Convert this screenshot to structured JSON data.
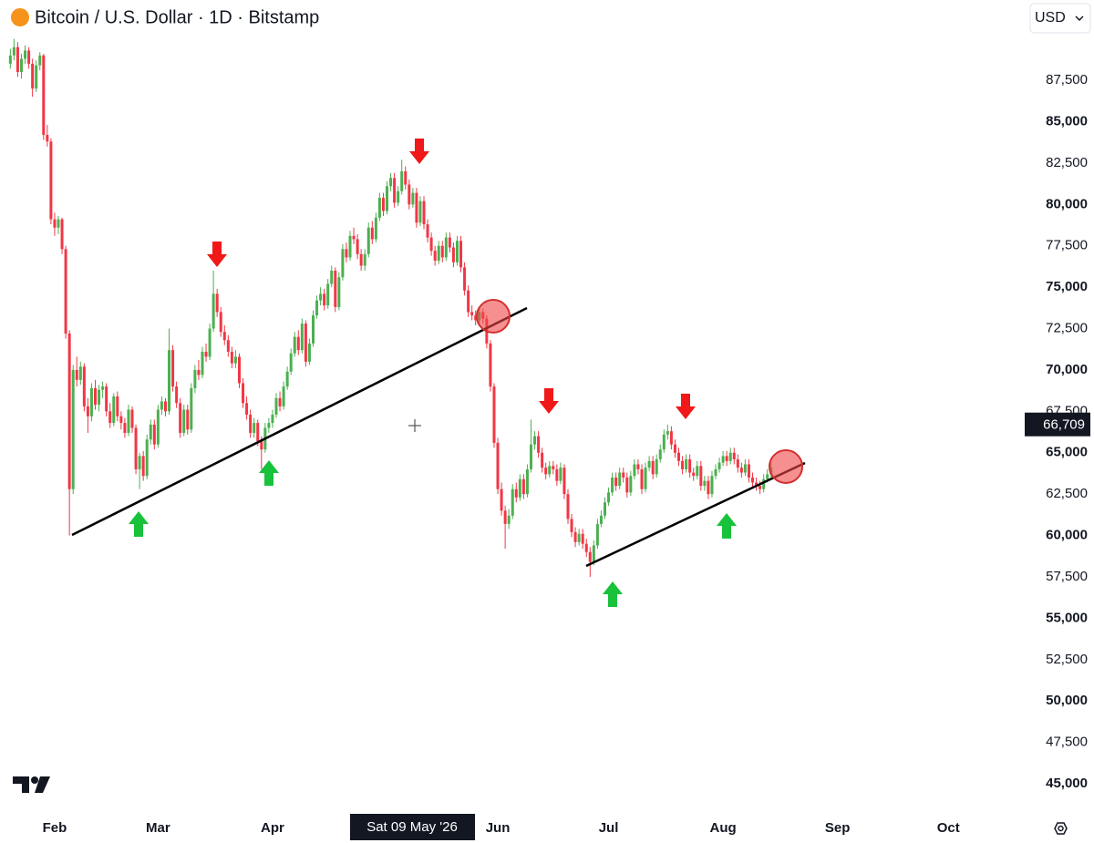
{
  "chart_data": {
    "type": "candlestick",
    "title": "Bitcoin / U.S. Dollar · 1D · Bitstamp",
    "currency": "USD",
    "crosshair_label": "Sat 09 May '26",
    "last_price": {
      "value": 66709,
      "label": "66,709"
    },
    "up_color": "#4caf50",
    "down_color": "#f23645",
    "ylim": [
      43900,
      92350
    ],
    "yticks": [
      {
        "value": 45000,
        "label": "45,000"
      },
      {
        "value": 47500,
        "label": "47,500"
      },
      {
        "value": 50000,
        "label": "50,000"
      },
      {
        "value": 52500,
        "label": "52,500"
      },
      {
        "value": 55000,
        "label": "55,000"
      },
      {
        "value": 57500,
        "label": "57,500"
      },
      {
        "value": 60000,
        "label": "60,000"
      },
      {
        "value": 62500,
        "label": "62,500"
      },
      {
        "value": 65000,
        "label": "65,000"
      },
      {
        "value": 67500,
        "label": "67,500"
      },
      {
        "value": 70000,
        "label": "70,000"
      },
      {
        "value": 72500,
        "label": "72,500"
      },
      {
        "value": 75000,
        "label": "75,000"
      },
      {
        "value": 77500,
        "label": "77,500"
      },
      {
        "value": 80000,
        "label": "80,000"
      },
      {
        "value": 82500,
        "label": "82,500"
      },
      {
        "value": 85000,
        "label": "85,000"
      },
      {
        "value": 87500,
        "label": "87,500"
      }
    ],
    "xlim": [
      -2.8,
      273.7
    ],
    "xticks": [
      {
        "value": 12,
        "label": "Feb"
      },
      {
        "value": 40,
        "label": "Mar"
      },
      {
        "value": 71,
        "label": "Apr"
      },
      {
        "value": 132,
        "label": "Jun"
      },
      {
        "value": 162,
        "label": "Jul"
      },
      {
        "value": 193,
        "label": "Aug"
      },
      {
        "value": 224,
        "label": "Sep"
      },
      {
        "value": 254,
        "label": "Oct"
      }
    ],
    "ohlc": [
      [
        88500,
        89400,
        88200,
        89000
      ],
      [
        89000,
        90000,
        88700,
        89500
      ],
      [
        89500,
        89800,
        87700,
        88000
      ],
      [
        88000,
        89100,
        87600,
        88800
      ],
      [
        88800,
        89600,
        88500,
        89300
      ],
      [
        89300,
        89500,
        88200,
        88500
      ],
      [
        88500,
        88800,
        86500,
        87000
      ],
      [
        87000,
        88700,
        86800,
        88400
      ],
      [
        88400,
        89200,
        88100,
        89000
      ],
      [
        89000,
        89100,
        83900,
        84200
      ],
      [
        84200,
        84800,
        83500,
        83800
      ],
      [
        83800,
        84000,
        78800,
        79100
      ],
      [
        79100,
        79500,
        78100,
        78600
      ],
      [
        78600,
        79300,
        78200,
        79100
      ],
      [
        79100,
        79200,
        77000,
        77300
      ],
      [
        77300,
        77500,
        71900,
        72200
      ],
      [
        72200,
        72400,
        60000,
        62800
      ],
      [
        62800,
        70300,
        62500,
        70000
      ],
      [
        70000,
        70800,
        69000,
        69400
      ],
      [
        69400,
        70500,
        69100,
        70200
      ],
      [
        70200,
        70400,
        67500,
        67800
      ],
      [
        67800,
        68300,
        66200,
        67200
      ],
      [
        67200,
        69200,
        66900,
        68900
      ],
      [
        68900,
        69400,
        67600,
        67900
      ],
      [
        67900,
        69100,
        67500,
        68800
      ],
      [
        68800,
        69300,
        68300,
        69000
      ],
      [
        69000,
        69200,
        67200,
        67500
      ],
      [
        67500,
        68000,
        66500,
        66800
      ],
      [
        66800,
        68600,
        66600,
        68400
      ],
      [
        68400,
        68700,
        66900,
        67200
      ],
      [
        67200,
        67500,
        66400,
        66800
      ],
      [
        66800,
        67100,
        65900,
        66200
      ],
      [
        66200,
        67900,
        66000,
        67600
      ],
      [
        67600,
        67800,
        66200,
        66500
      ],
      [
        66500,
        66700,
        63700,
        64000
      ],
      [
        64000,
        65000,
        62800,
        64800
      ],
      [
        64800,
        65100,
        63300,
        63600
      ],
      [
        63600,
        66100,
        63400,
        65800
      ],
      [
        65800,
        67000,
        65500,
        66700
      ],
      [
        66700,
        67000,
        65200,
        65500
      ],
      [
        65500,
        67900,
        65300,
        67600
      ],
      [
        67600,
        68400,
        67300,
        68100
      ],
      [
        68100,
        68300,
        67200,
        67500
      ],
      [
        67500,
        72500,
        67300,
        71200
      ],
      [
        71200,
        71500,
        68700,
        69000
      ],
      [
        69000,
        69300,
        67700,
        68000
      ],
      [
        68000,
        68300,
        65900,
        66200
      ],
      [
        66200,
        67900,
        66000,
        67600
      ],
      [
        67600,
        67900,
        66100,
        66400
      ],
      [
        66400,
        69200,
        66200,
        68900
      ],
      [
        68900,
        70300,
        68600,
        70000
      ],
      [
        70000,
        70600,
        69400,
        69700
      ],
      [
        69700,
        71400,
        69500,
        71100
      ],
      [
        71100,
        71600,
        70500,
        70800
      ],
      [
        70800,
        72800,
        70600,
        72500
      ],
      [
        72500,
        76000,
        72300,
        74600
      ],
      [
        74600,
        74900,
        73200,
        73500
      ],
      [
        73500,
        73800,
        72000,
        72300
      ],
      [
        72300,
        72700,
        71500,
        71800
      ],
      [
        71800,
        72100,
        70800,
        71100
      ],
      [
        71100,
        71400,
        70100,
        70400
      ],
      [
        70400,
        71200,
        70100,
        70800
      ],
      [
        70800,
        71000,
        68900,
        69200
      ],
      [
        69200,
        69500,
        67700,
        68000
      ],
      [
        68000,
        68400,
        67000,
        67300
      ],
      [
        67300,
        67600,
        65900,
        66200
      ],
      [
        66200,
        67100,
        65900,
        66800
      ],
      [
        66800,
        67000,
        65400,
        65700
      ],
      [
        65700,
        66000,
        64000,
        65200
      ],
      [
        65200,
        66800,
        65000,
        66500
      ],
      [
        66500,
        67100,
        66200,
        66800
      ],
      [
        66800,
        67600,
        66500,
        67300
      ],
      [
        67300,
        68600,
        67100,
        68300
      ],
      [
        68300,
        68700,
        67500,
        67800
      ],
      [
        67800,
        69300,
        67600,
        69000
      ],
      [
        69000,
        70200,
        68800,
        69900
      ],
      [
        69900,
        71300,
        69700,
        71000
      ],
      [
        71000,
        72300,
        70800,
        72000
      ],
      [
        72000,
        72400,
        70900,
        71200
      ],
      [
        71200,
        73100,
        71000,
        72800
      ],
      [
        72800,
        73000,
        70200,
        70500
      ],
      [
        70500,
        71900,
        70300,
        71600
      ],
      [
        71600,
        73600,
        71400,
        73300
      ],
      [
        73300,
        74500,
        73100,
        74200
      ],
      [
        74200,
        75000,
        73900,
        74600
      ],
      [
        74600,
        74900,
        73600,
        73900
      ],
      [
        73900,
        75500,
        73700,
        75200
      ],
      [
        75200,
        76300,
        75000,
        76000
      ],
      [
        76000,
        76200,
        73500,
        73800
      ],
      [
        73800,
        75900,
        73600,
        75600
      ],
      [
        75600,
        77600,
        75400,
        77300
      ],
      [
        77300,
        77700,
        76500,
        76800
      ],
      [
        76800,
        78400,
        76600,
        78100
      ],
      [
        78100,
        78600,
        77600,
        77900
      ],
      [
        77900,
        78200,
        76700,
        77000
      ],
      [
        77000,
        77300,
        76000,
        76300
      ],
      [
        76300,
        77300,
        76000,
        77000
      ],
      [
        77000,
        78900,
        76800,
        78600
      ],
      [
        78600,
        79000,
        77600,
        77900
      ],
      [
        77900,
        79500,
        77700,
        79200
      ],
      [
        79200,
        80700,
        79000,
        80400
      ],
      [
        80400,
        80700,
        79300,
        79600
      ],
      [
        79600,
        81400,
        79400,
        81100
      ],
      [
        81100,
        81900,
        80800,
        81600
      ],
      [
        81600,
        81900,
        79800,
        80100
      ],
      [
        80100,
        81100,
        79900,
        80800
      ],
      [
        80800,
        82700,
        80600,
        82000
      ],
      [
        82000,
        82300,
        80900,
        81200
      ],
      [
        81200,
        81500,
        79700,
        80000
      ],
      [
        80000,
        81000,
        79800,
        80700
      ],
      [
        80700,
        81000,
        78600,
        78900
      ],
      [
        78900,
        80500,
        78700,
        80200
      ],
      [
        80200,
        80500,
        78500,
        78800
      ],
      [
        78800,
        79100,
        77700,
        78000
      ],
      [
        78000,
        78300,
        76900,
        77200
      ],
      [
        77200,
        77500,
        76300,
        76600
      ],
      [
        76600,
        77800,
        76400,
        77500
      ],
      [
        77500,
        77800,
        76500,
        76800
      ],
      [
        76800,
        78300,
        76600,
        78000
      ],
      [
        78000,
        78300,
        77100,
        77400
      ],
      [
        77400,
        77700,
        76200,
        76500
      ],
      [
        76500,
        78100,
        76300,
        77800
      ],
      [
        77800,
        78100,
        75900,
        76200
      ],
      [
        76200,
        76500,
        74500,
        74800
      ],
      [
        74800,
        75100,
        73200,
        73500
      ],
      [
        73500,
        73900,
        73000,
        73300
      ],
      [
        73300,
        73600,
        72700,
        73000
      ],
      [
        73000,
        73800,
        72800,
        73500
      ],
      [
        73500,
        73700,
        72800,
        73100
      ],
      [
        73100,
        73300,
        71300,
        71600
      ],
      [
        71600,
        71800,
        68700,
        69000
      ],
      [
        69000,
        69200,
        65300,
        65600
      ],
      [
        65600,
        65900,
        62500,
        62800
      ],
      [
        62800,
        63200,
        61200,
        61500
      ],
      [
        61500,
        61800,
        59200,
        60700
      ],
      [
        60700,
        61600,
        60400,
        61200
      ],
      [
        61200,
        63100,
        61000,
        62800
      ],
      [
        62800,
        63200,
        62000,
        62300
      ],
      [
        62300,
        63700,
        62100,
        63400
      ],
      [
        63400,
        63700,
        62200,
        62500
      ],
      [
        62500,
        64300,
        62300,
        64000
      ],
      [
        64000,
        67000,
        63800,
        65500
      ],
      [
        65500,
        66300,
        65200,
        66000
      ],
      [
        66000,
        66300,
        64700,
        65000
      ],
      [
        65000,
        65300,
        63800,
        64100
      ],
      [
        64100,
        64400,
        63400,
        63700
      ],
      [
        63700,
        64500,
        63500,
        64200
      ],
      [
        64200,
        64500,
        63700,
        64000
      ],
      [
        64000,
        64300,
        63000,
        63300
      ],
      [
        63300,
        64400,
        63100,
        64100
      ],
      [
        64100,
        64300,
        62200,
        62500
      ],
      [
        62500,
        62800,
        60700,
        61000
      ],
      [
        61000,
        61300,
        59900,
        60200
      ],
      [
        60200,
        60500,
        59300,
        59600
      ],
      [
        59600,
        60400,
        59400,
        60100
      ],
      [
        60100,
        60400,
        59200,
        59500
      ],
      [
        59500,
        59800,
        58700,
        59000
      ],
      [
        59000,
        59300,
        57500,
        58400
      ],
      [
        58400,
        59700,
        58200,
        59400
      ],
      [
        59400,
        61000,
        59200,
        60700
      ],
      [
        60700,
        61500,
        60500,
        61200
      ],
      [
        61200,
        62300,
        61000,
        62000
      ],
      [
        62000,
        62900,
        61800,
        62600
      ],
      [
        62600,
        63800,
        62400,
        63500
      ],
      [
        63500,
        63800,
        62700,
        63000
      ],
      [
        63000,
        64100,
        62800,
        63800
      ],
      [
        63800,
        64100,
        63200,
        63500
      ],
      [
        63500,
        63800,
        62300,
        62600
      ],
      [
        62600,
        63900,
        62400,
        63600
      ],
      [
        63600,
        64600,
        63400,
        64300
      ],
      [
        64300,
        64600,
        63700,
        64000
      ],
      [
        64000,
        64300,
        62500,
        62800
      ],
      [
        62800,
        64400,
        62600,
        64100
      ],
      [
        64100,
        64800,
        63900,
        64500
      ],
      [
        64500,
        64800,
        63400,
        63700
      ],
      [
        63700,
        64900,
        63500,
        64600
      ],
      [
        64600,
        65500,
        64400,
        65200
      ],
      [
        65200,
        66400,
        65000,
        66100
      ],
      [
        66100,
        66700,
        65800,
        66300
      ],
      [
        66300,
        66600,
        65200,
        65500
      ],
      [
        65500,
        65800,
        64700,
        65000
      ],
      [
        65000,
        65300,
        64200,
        64500
      ],
      [
        64500,
        64800,
        63700,
        64000
      ],
      [
        64000,
        64900,
        63800,
        64600
      ],
      [
        64600,
        64900,
        63500,
        63800
      ],
      [
        63800,
        64100,
        63300,
        63600
      ],
      [
        63600,
        64500,
        63400,
        64200
      ],
      [
        64200,
        64500,
        62700,
        63000
      ],
      [
        63000,
        63600,
        62700,
        63300
      ],
      [
        63300,
        63600,
        62200,
        62500
      ],
      [
        62500,
        63900,
        62300,
        63600
      ],
      [
        63600,
        64300,
        63400,
        64000
      ],
      [
        64000,
        64700,
        63800,
        64400
      ],
      [
        64400,
        65100,
        64200,
        64800
      ],
      [
        64800,
        65100,
        64200,
        64500
      ],
      [
        64500,
        65300,
        64300,
        65000
      ],
      [
        65000,
        65300,
        64300,
        64600
      ],
      [
        64600,
        64900,
        63800,
        64100
      ],
      [
        64100,
        64400,
        63500,
        63800
      ],
      [
        63800,
        64600,
        63600,
        64300
      ],
      [
        64300,
        64600,
        63200,
        63500
      ],
      [
        63500,
        63800,
        62900,
        63200
      ],
      [
        63200,
        63500,
        62700,
        63000
      ],
      [
        63000,
        63300,
        62500,
        62800
      ],
      [
        62800,
        63700,
        62600,
        63400
      ],
      [
        63400,
        64000,
        63200,
        63700
      ],
      [
        63700,
        64400,
        63500,
        64100
      ]
    ]
  }
}
